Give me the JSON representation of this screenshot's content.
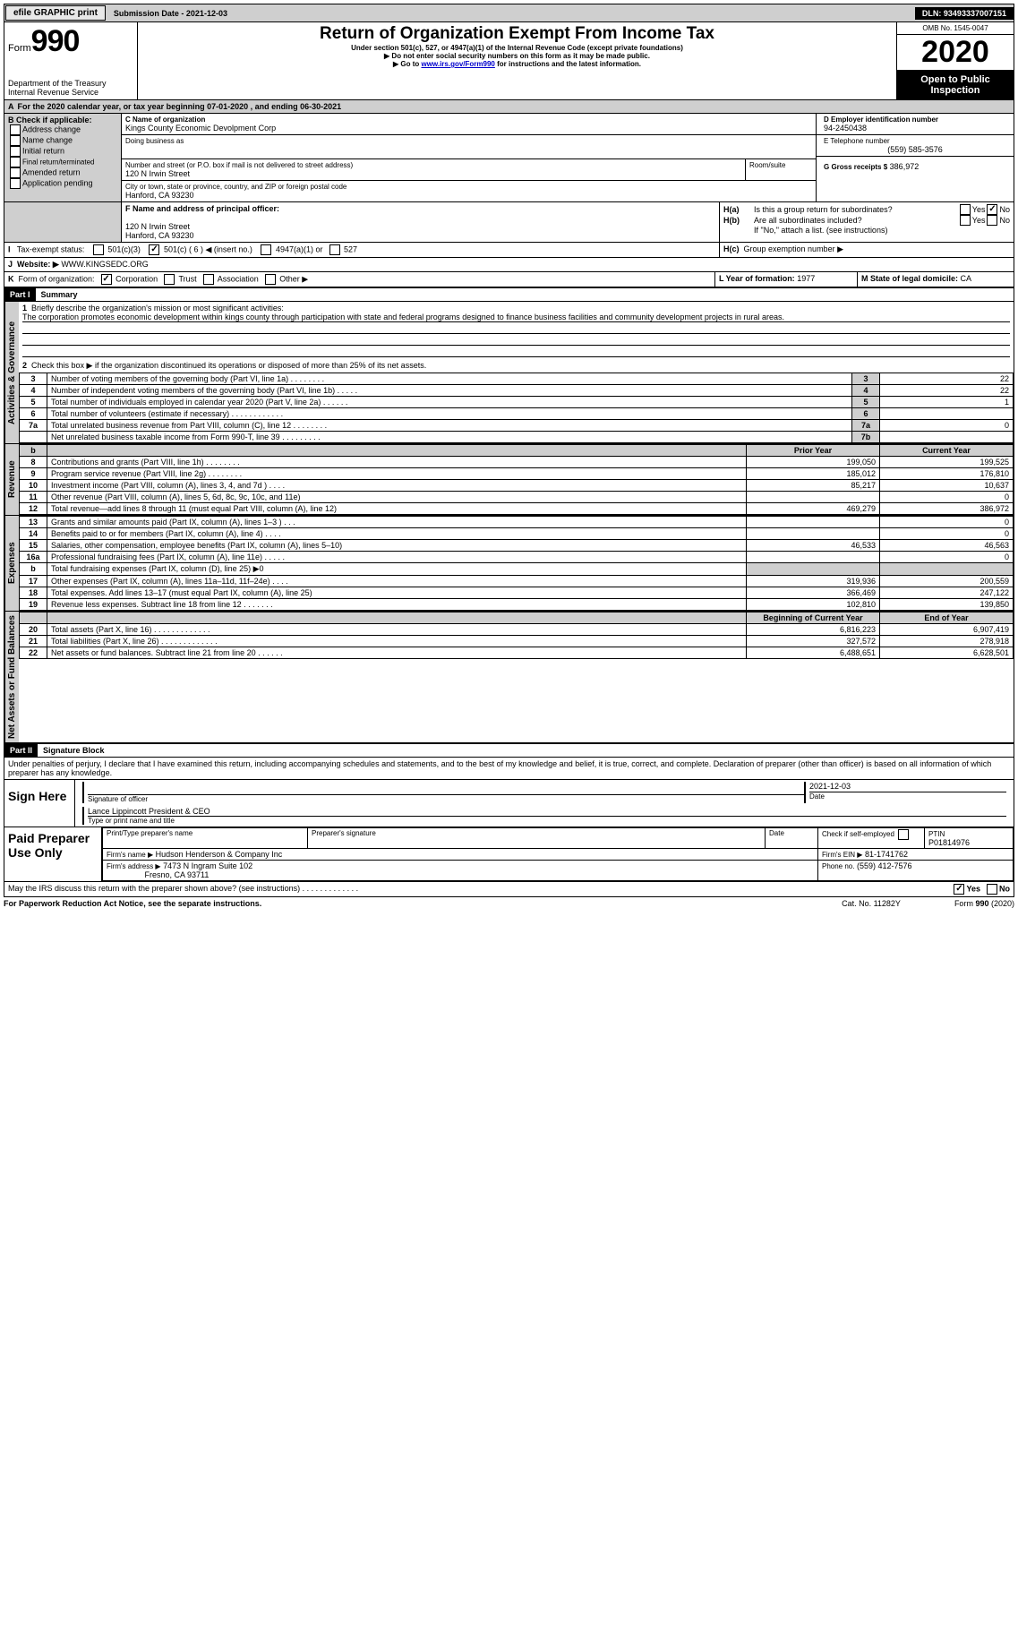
{
  "top": {
    "efile": "efile GRAPHIC print",
    "submission": "Submission Date - 2021-12-03",
    "dln": "DLN: 93493337007151"
  },
  "header": {
    "form_word": "Form",
    "form_num": "990",
    "dept": "Department of the Treasury\nInternal Revenue Service",
    "title": "Return of Organization Exempt From Income Tax",
    "sub1": "Under section 501(c), 527, or 4947(a)(1) of the Internal Revenue Code (except private foundations)",
    "sub2": "▶ Do not enter social security numbers on this form as it may be made public.",
    "sub3_pre": "▶ Go to ",
    "sub3_link": "www.irs.gov/Form990",
    "sub3_post": " for instructions and the latest information.",
    "omb": "OMB No. 1545-0047",
    "year": "2020",
    "open": "Open to Public Inspection"
  },
  "A": {
    "text": "For the 2020 calendar year, or tax year beginning 07-01-2020    , and ending 06-30-2021"
  },
  "B": {
    "label": "B Check if applicable:",
    "opts": [
      "Address change",
      "Name change",
      "Initial return",
      "Final return/terminated",
      "Amended return",
      "Application pending"
    ]
  },
  "C": {
    "name_label": "C Name of organization",
    "name": "Kings County Economic Devolpment Corp",
    "dba": "Doing business as",
    "street_label": "Number and street (or P.O. box if mail is not delivered to street address)",
    "room": "Room/suite",
    "street": "120 N Irwin Street",
    "city_label": "City or town, state or province, country, and ZIP or foreign postal code",
    "city": "Hanford, CA  93230"
  },
  "D": {
    "label": "D Employer identification number",
    "val": "94-2450438"
  },
  "E": {
    "label": "E Telephone number",
    "val": "(559) 585-3576"
  },
  "G": {
    "label": "G Gross receipts $",
    "val": "386,972"
  },
  "F": {
    "label": "F  Name and address of principal officer:",
    "line1": "120 N Irwin Street",
    "line2": "Hanford, CA  93230"
  },
  "H": {
    "a": "Is this a group return for subordinates?",
    "b": "Are all subordinates included?",
    "bnote": "If \"No,\" attach a list. (see instructions)",
    "c": "Group exemption number ▶",
    "yes": "Yes",
    "no": "No"
  },
  "I": {
    "label": "Tax-exempt status:",
    "o1": "501(c)(3)",
    "o2": "501(c) ( 6 ) ◀ (insert no.)",
    "o3": "4947(a)(1) or",
    "o4": "527"
  },
  "J": {
    "label": "Website: ▶",
    "val": "WWW.KINGSEDC.ORG"
  },
  "K": {
    "label": "Form of organization:",
    "o1": "Corporation",
    "o2": "Trust",
    "o3": "Association",
    "o4": "Other ▶"
  },
  "L": {
    "label": "L Year of formation:",
    "val": "1977"
  },
  "M": {
    "label": "M State of legal domicile:",
    "val": "CA"
  },
  "part1": {
    "bar": "Part I",
    "title": "Summary",
    "l1": "Briefly describe the organization's mission or most significant activities:",
    "mission": "The corporation promotes economic development within kings county through participation with state and federal programs designed to finance business facilities and community development projects in rural areas.",
    "l2": "Check this box ▶        if the organization discontinued its operations or disposed of more than 25% of its net assets.",
    "sections": {
      "gov": "Activities & Governance",
      "rev": "Revenue",
      "exp": "Expenses",
      "net": "Net Assets or Fund Balances"
    },
    "gov_lines": [
      {
        "n": "3",
        "t": "Number of voting members of the governing body (Part VI, line 1a)   .    .    .    .    .    .    .    .",
        "box": "3",
        "v": "22"
      },
      {
        "n": "4",
        "t": "Number of independent voting members of the governing body (Part VI, line 1b)    .    .    .    .    .",
        "box": "4",
        "v": "22"
      },
      {
        "n": "5",
        "t": "Total number of individuals employed in calendar year 2020 (Part V, line 2a)    .    .    .    .    .    .",
        "box": "5",
        "v": "1"
      },
      {
        "n": "6",
        "t": "Total number of volunteers (estimate if necessary)    .    .    .    .    .    .    .    .    .    .    .    .",
        "box": "6",
        "v": ""
      },
      {
        "n": "7a",
        "t": "Total unrelated business revenue from Part VIII, column (C), line 12    .    .    .    .    .    .    .    .",
        "box": "7a",
        "v": "0"
      },
      {
        "n": "",
        "t": "Net unrelated business taxable income from Form 990-T, line 39    .    .    .    .    .    .    .    .    .",
        "box": "7b",
        "v": ""
      }
    ],
    "col_prior": "Prior Year",
    "col_curr": "Current Year",
    "rev_lines": [
      {
        "n": "8",
        "t": "Contributions and grants (Part VIII, line 1h)    .    .    .    .    .    .    .    .",
        "p": "199,050",
        "c": "199,525"
      },
      {
        "n": "9",
        "t": "Program service revenue (Part VIII, line 2g)    .    .    .    .    .    .    .    .",
        "p": "185,012",
        "c": "176,810"
      },
      {
        "n": "10",
        "t": "Investment income (Part VIII, column (A), lines 3, 4, and 7d )    .    .    .    .",
        "p": "85,217",
        "c": "10,637"
      },
      {
        "n": "11",
        "t": "Other revenue (Part VIII, column (A), lines 5, 6d, 8c, 9c, 10c, and 11e)",
        "p": "",
        "c": "0"
      },
      {
        "n": "12",
        "t": "Total revenue—add lines 8 through 11 (must equal Part VIII, column (A), line 12)",
        "p": "469,279",
        "c": "386,972"
      }
    ],
    "exp_lines": [
      {
        "n": "13",
        "t": "Grants and similar amounts paid (Part IX, column (A), lines 1–3 )    .    .    .",
        "p": "",
        "c": "0"
      },
      {
        "n": "14",
        "t": "Benefits paid to or for members (Part IX, column (A), line 4)    .    .    .    .",
        "p": "",
        "c": "0"
      },
      {
        "n": "15",
        "t": "Salaries, other compensation, employee benefits (Part IX, column (A), lines 5–10)",
        "p": "46,533",
        "c": "46,563"
      },
      {
        "n": "16a",
        "t": "Professional fundraising fees (Part IX, column (A), line 11e)    .    .    .    .    .",
        "p": "",
        "c": "0"
      },
      {
        "n": "b",
        "t": "Total fundraising expenses (Part IX, column (D), line 25) ▶0",
        "p": "GRAY",
        "c": "GRAY"
      },
      {
        "n": "17",
        "t": "Other expenses (Part IX, column (A), lines 11a–11d, 11f–24e)    .    .    .    .",
        "p": "319,936",
        "c": "200,559"
      },
      {
        "n": "18",
        "t": "Total expenses. Add lines 13–17 (must equal Part IX, column (A), line 25)",
        "p": "366,469",
        "c": "247,122"
      },
      {
        "n": "19",
        "t": "Revenue less expenses. Subtract line 18 from line 12    .    .    .    .    .    .    .",
        "p": "102,810",
        "c": "139,850"
      }
    ],
    "col_beg": "Beginning of Current Year",
    "col_end": "End of Year",
    "net_lines": [
      {
        "n": "20",
        "t": "Total assets (Part X, line 16)    .    .    .    .    .    .    .    .    .    .    .    .    .",
        "p": "6,816,223",
        "c": "6,907,419"
      },
      {
        "n": "21",
        "t": "Total liabilities (Part X, line 26)    .    .    .    .    .    .    .    .    .    .    .    .    .",
        "p": "327,572",
        "c": "278,918"
      },
      {
        "n": "22",
        "t": "Net assets or fund balances. Subtract line 21 from line 20    .    .    .    .    .    .",
        "p": "6,488,651",
        "c": "6,628,501"
      }
    ]
  },
  "part2": {
    "bar": "Part II",
    "title": "Signature Block",
    "decl": "Under penalties of perjury, I declare that I have examined this return, including accompanying schedules and statements, and to the best of my knowledge and belief, it is true, correct, and complete. Declaration of preparer (other than officer) is based on all information of which preparer has any knowledge."
  },
  "sign": {
    "here": "Sign Here",
    "sig_label": "Signature of officer",
    "date": "2021-12-03",
    "date_label": "Date",
    "name": "Lance Lippincott  President & CEO",
    "name_label": "Type or print name and title"
  },
  "prep": {
    "here": "Paid Preparer Use Only",
    "h_name": "Print/Type preparer's name",
    "h_sig": "Preparer's signature",
    "h_date": "Date",
    "h_self": "Check        if self-employed",
    "h_ptin": "PTIN",
    "ptin": "P01814976",
    "firm_label": "Firm's name    ▶",
    "firm": "Hudson Henderson & Company Inc",
    "ein_label": "Firm's EIN ▶",
    "ein": "81-1741762",
    "addr_label": "Firm's address ▶",
    "addr1": "7473 N Ingram Suite 102",
    "addr2": "Fresno, CA  93711",
    "phone_label": "Phone no.",
    "phone": "(559) 412-7576"
  },
  "discuss": {
    "q": "May the IRS discuss this return with the preparer shown above? (see instructions)    .    .    .    .    .    .    .    .    .    .    .    .    .",
    "yes": "Yes",
    "no": "No"
  },
  "foot": {
    "left": "For Paperwork Reduction Act Notice, see the separate instructions.",
    "mid": "Cat. No. 11282Y",
    "right": "Form 990 (2020)"
  }
}
